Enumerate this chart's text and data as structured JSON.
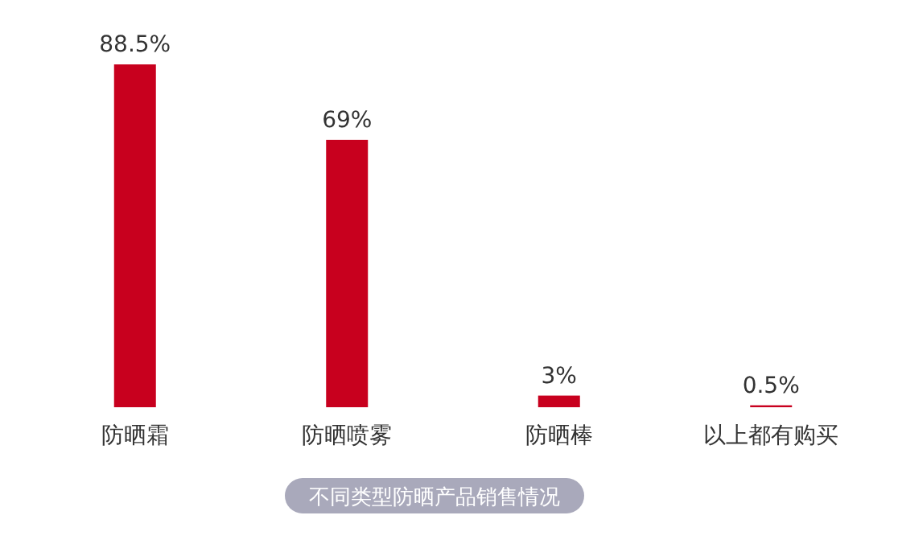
{
  "chart_data": {
    "type": "bar",
    "title": "不同类型防晒产品销售情况",
    "categories": [
      "防晒霜",
      "防晒喷雾",
      "防晒棒",
      "以上都有购买"
    ],
    "values": [
      88.5,
      69,
      3,
      0.5
    ],
    "value_labels": [
      "88.5%",
      "69%",
      "3%",
      "0.5%"
    ],
    "color": "#c8001e"
  }
}
